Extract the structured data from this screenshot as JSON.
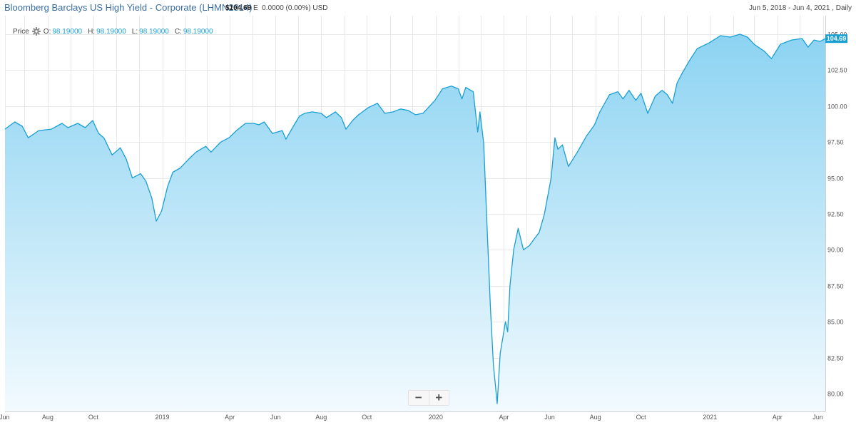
{
  "header": {
    "title": "Bloomberg Barclays US High Yield - Corporate (LHMN2814)",
    "price": "$104.69",
    "price_flag": "E",
    "change": "0.0000",
    "change_pct": "(0.00%)",
    "currency": "USD",
    "range": "Jun 5, 2018 - Jun 4, 2021 , Daily"
  },
  "ohlc": {
    "label": "Price",
    "settings_icon": "gear-icon",
    "o_label": "O:",
    "o_value": "98.19000",
    "h_label": "H:",
    "h_value": "98.19000",
    "l_label": "L:",
    "l_value": "98.19000",
    "c_label": "C:",
    "c_value": "98.19000"
  },
  "zoom": {
    "minus_label": "−",
    "plus_label": "+"
  },
  "chart_data": {
    "type": "area",
    "title": "",
    "xlabel": "",
    "ylabel": "",
    "ylim": [
      79,
      105.5
    ],
    "xlim": [
      "2018-06-05",
      "2021-06-04"
    ],
    "grid": true,
    "line_color": "#1a9fd3",
    "fill_top_color": "#8cd3f2",
    "fill_bottom_color": "#f2fafe",
    "last_value": 104.69,
    "last_value_label": "104.69",
    "y_ticks": [
      {
        "value": 105,
        "label": "105.00"
      },
      {
        "value": 102.5,
        "label": "102.50"
      },
      {
        "value": 100,
        "label": "100.00"
      },
      {
        "value": 97.5,
        "label": "97.50"
      },
      {
        "value": 95,
        "label": "95.00"
      },
      {
        "value": 92.5,
        "label": "92.50"
      },
      {
        "value": 90,
        "label": "90.00"
      },
      {
        "value": 87.5,
        "label": "87.50"
      },
      {
        "value": 85,
        "label": "85.00"
      },
      {
        "value": 82.5,
        "label": "82.50"
      },
      {
        "value": 80,
        "label": "80.00"
      }
    ],
    "x_ticks": [
      {
        "date": "2018-06-01",
        "label": "Jun"
      },
      {
        "date": "2018-08-01",
        "label": "Aug"
      },
      {
        "date": "2018-10-01",
        "label": "Oct"
      },
      {
        "date": "2019-01-01",
        "label": "2019"
      },
      {
        "date": "2019-04-01",
        "label": "Apr"
      },
      {
        "date": "2019-06-01",
        "label": "Jun"
      },
      {
        "date": "2019-08-01",
        "label": "Aug"
      },
      {
        "date": "2019-10-01",
        "label": "Oct"
      },
      {
        "date": "2020-01-01",
        "label": "2020"
      },
      {
        "date": "2020-04-01",
        "label": "Apr"
      },
      {
        "date": "2020-06-01",
        "label": "Jun"
      },
      {
        "date": "2020-08-01",
        "label": "Aug"
      },
      {
        "date": "2020-10-01",
        "label": "Oct"
      },
      {
        "date": "2021-01-01",
        "label": "2021"
      },
      {
        "date": "2021-04-01",
        "label": "Apr"
      },
      {
        "date": "2021-06-01",
        "label": "Jun"
      }
    ],
    "x_grid_dates": [
      "2018-06-05",
      "2018-07-01",
      "2018-08-01",
      "2018-09-01",
      "2018-10-01",
      "2018-11-01",
      "2018-12-01",
      "2019-01-01",
      "2019-02-01",
      "2019-03-01",
      "2019-04-01",
      "2019-05-01",
      "2019-06-01",
      "2019-07-01",
      "2019-08-01",
      "2019-09-01",
      "2019-10-01",
      "2019-11-01",
      "2019-12-01",
      "2020-01-01",
      "2020-02-01",
      "2020-03-01",
      "2020-04-01",
      "2020-05-01",
      "2020-06-01",
      "2020-07-01",
      "2020-08-01",
      "2020-09-01",
      "2020-10-01",
      "2020-11-01",
      "2020-12-01",
      "2021-01-01",
      "2021-02-01",
      "2021-03-01",
      "2021-04-01",
      "2021-05-01",
      "2021-06-01"
    ],
    "series": [
      {
        "points": [
          [
            "2018-06-05",
            98.4
          ],
          [
            "2018-06-18",
            98.9
          ],
          [
            "2018-06-28",
            98.6
          ],
          [
            "2018-07-06",
            97.8
          ],
          [
            "2018-07-20",
            98.3
          ],
          [
            "2018-08-06",
            98.4
          ],
          [
            "2018-08-20",
            98.8
          ],
          [
            "2018-08-28",
            98.5
          ],
          [
            "2018-09-10",
            98.8
          ],
          [
            "2018-09-20",
            98.5
          ],
          [
            "2018-09-30",
            99.0
          ],
          [
            "2018-10-08",
            98.1
          ],
          [
            "2018-10-15",
            97.8
          ],
          [
            "2018-10-26",
            96.6
          ],
          [
            "2018-11-06",
            97.1
          ],
          [
            "2018-11-14",
            96.3
          ],
          [
            "2018-11-22",
            95.0
          ],
          [
            "2018-12-03",
            95.3
          ],
          [
            "2018-12-10",
            94.8
          ],
          [
            "2018-12-18",
            93.6
          ],
          [
            "2018-12-24",
            92.0
          ],
          [
            "2018-12-31",
            92.7
          ],
          [
            "2019-01-08",
            94.4
          ],
          [
            "2019-01-15",
            95.4
          ],
          [
            "2019-01-25",
            95.7
          ],
          [
            "2019-02-05",
            96.3
          ],
          [
            "2019-02-15",
            96.8
          ],
          [
            "2019-02-28",
            97.2
          ],
          [
            "2019-03-07",
            96.8
          ],
          [
            "2019-03-20",
            97.5
          ],
          [
            "2019-03-31",
            97.8
          ],
          [
            "2019-04-10",
            98.3
          ],
          [
            "2019-04-22",
            98.8
          ],
          [
            "2019-05-03",
            98.8
          ],
          [
            "2019-05-10",
            98.7
          ],
          [
            "2019-05-17",
            98.9
          ],
          [
            "2019-05-28",
            98.1
          ],
          [
            "2019-06-10",
            98.3
          ],
          [
            "2019-06-15",
            97.7
          ],
          [
            "2019-06-25",
            98.6
          ],
          [
            "2019-07-03",
            99.3
          ],
          [
            "2019-07-10",
            99.5
          ],
          [
            "2019-07-20",
            99.6
          ],
          [
            "2019-08-01",
            99.5
          ],
          [
            "2019-08-08",
            99.2
          ],
          [
            "2019-08-20",
            99.6
          ],
          [
            "2019-08-28",
            99.2
          ],
          [
            "2019-09-03",
            98.4
          ],
          [
            "2019-09-12",
            99.0
          ],
          [
            "2019-09-20",
            99.4
          ],
          [
            "2019-10-03",
            99.9
          ],
          [
            "2019-10-15",
            100.2
          ],
          [
            "2019-10-25",
            99.5
          ],
          [
            "2019-11-05",
            99.6
          ],
          [
            "2019-11-15",
            99.8
          ],
          [
            "2019-11-25",
            99.7
          ],
          [
            "2019-12-05",
            99.4
          ],
          [
            "2019-12-15",
            99.5
          ],
          [
            "2019-12-31",
            100.4
          ],
          [
            "2020-01-10",
            101.2
          ],
          [
            "2020-01-22",
            101.4
          ],
          [
            "2020-01-31",
            101.2
          ],
          [
            "2020-02-05",
            100.5
          ],
          [
            "2020-02-10",
            101.3
          ],
          [
            "2020-02-20",
            101.0
          ],
          [
            "2020-02-26",
            98.2
          ],
          [
            "2020-02-29",
            99.6
          ],
          [
            "2020-03-05",
            97.4
          ],
          [
            "2020-03-10",
            91.0
          ],
          [
            "2020-03-14",
            86.0
          ],
          [
            "2020-03-18",
            82.0
          ],
          [
            "2020-03-23",
            79.3
          ],
          [
            "2020-03-27",
            82.8
          ],
          [
            "2020-04-03",
            85.0
          ],
          [
            "2020-04-06",
            84.3
          ],
          [
            "2020-04-09",
            87.5
          ],
          [
            "2020-04-14",
            90.0
          ],
          [
            "2020-04-20",
            91.5
          ],
          [
            "2020-04-27",
            90.0
          ],
          [
            "2020-05-05",
            90.3
          ],
          [
            "2020-05-12",
            90.8
          ],
          [
            "2020-05-18",
            91.2
          ],
          [
            "2020-05-25",
            92.5
          ],
          [
            "2020-06-03",
            95.0
          ],
          [
            "2020-06-08",
            97.8
          ],
          [
            "2020-06-12",
            97.0
          ],
          [
            "2020-06-18",
            97.3
          ],
          [
            "2020-06-26",
            95.8
          ],
          [
            "2020-07-08",
            96.8
          ],
          [
            "2020-07-20",
            97.9
          ],
          [
            "2020-07-31",
            98.7
          ],
          [
            "2020-08-07",
            99.6
          ],
          [
            "2020-08-20",
            100.8
          ],
          [
            "2020-08-31",
            101.0
          ],
          [
            "2020-09-07",
            100.5
          ],
          [
            "2020-09-15",
            101.1
          ],
          [
            "2020-09-24",
            100.4
          ],
          [
            "2020-10-01",
            100.9
          ],
          [
            "2020-10-10",
            99.5
          ],
          [
            "2020-10-20",
            100.7
          ],
          [
            "2020-10-29",
            101.1
          ],
          [
            "2020-11-05",
            100.8
          ],
          [
            "2020-11-12",
            100.2
          ],
          [
            "2020-11-18",
            101.6
          ],
          [
            "2020-11-25",
            102.3
          ],
          [
            "2020-12-05",
            103.2
          ],
          [
            "2020-12-15",
            104.0
          ],
          [
            "2020-12-31",
            104.4
          ],
          [
            "2021-01-15",
            104.9
          ],
          [
            "2021-01-28",
            104.8
          ],
          [
            "2021-02-10",
            105.0
          ],
          [
            "2021-02-20",
            104.8
          ],
          [
            "2021-03-01",
            104.3
          ],
          [
            "2021-03-15",
            103.8
          ],
          [
            "2021-03-24",
            103.3
          ],
          [
            "2021-04-05",
            104.3
          ],
          [
            "2021-04-20",
            104.6
          ],
          [
            "2021-05-04",
            104.7
          ],
          [
            "2021-05-12",
            104.1
          ],
          [
            "2021-05-20",
            104.6
          ],
          [
            "2021-05-28",
            104.5
          ],
          [
            "2021-06-04",
            104.69
          ]
        ]
      }
    ]
  }
}
